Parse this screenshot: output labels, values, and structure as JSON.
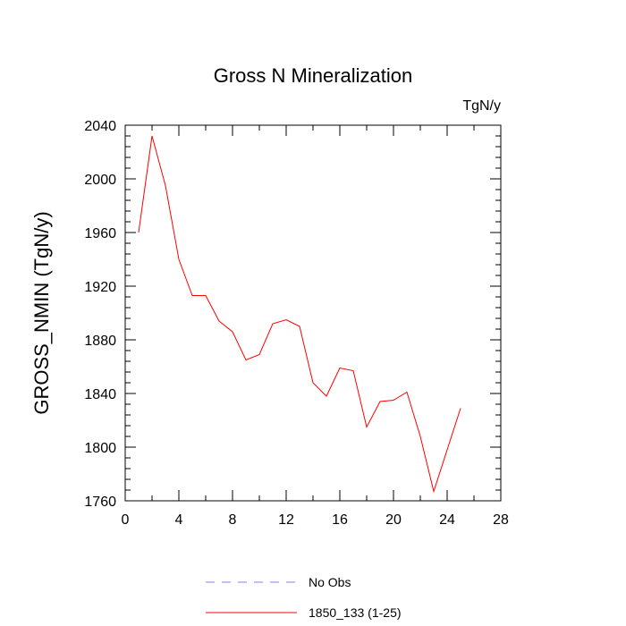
{
  "chart_data": {
    "type": "line",
    "title": "Gross N Mineralization",
    "units_label": "TgN/y",
    "xlabel": "",
    "ylabel": "GROSS_NMIN  (TgN/y)",
    "xlim": [
      0,
      28
    ],
    "ylim": [
      1760,
      2040
    ],
    "x_major_ticks": [
      0,
      4,
      8,
      12,
      16,
      20,
      24,
      28
    ],
    "x_minor_ticks": [
      2,
      6,
      10,
      14,
      18,
      22,
      26
    ],
    "y_major_ticks": [
      1760,
      1800,
      1840,
      1880,
      1920,
      1960,
      2000,
      2040
    ],
    "y_minor_step": 8,
    "grid": false,
    "legend_placement": "bottom-center",
    "series": [
      {
        "name": "1850_133 (1-25)",
        "color": "#ff0000",
        "style": "solid",
        "x": [
          1,
          2,
          3,
          4,
          5,
          6,
          7,
          8,
          9,
          10,
          11,
          12,
          13,
          14,
          15,
          16,
          17,
          18,
          19,
          20,
          21,
          22,
          23,
          24,
          25
        ],
        "values": [
          1960,
          2032,
          1995,
          1940,
          1913,
          1913,
          1894,
          1886,
          1865,
          1869,
          1892,
          1895,
          1890,
          1848,
          1838,
          1859,
          1857,
          1815,
          1834,
          1835,
          1841,
          1808,
          1767,
          1798,
          1829
        ]
      }
    ],
    "legend": [
      {
        "label": "No Obs",
        "color": "#8080ff",
        "style": "dashed"
      },
      {
        "label": "1850_133 (1-25)",
        "color": "#ff0000",
        "style": "solid"
      }
    ]
  }
}
